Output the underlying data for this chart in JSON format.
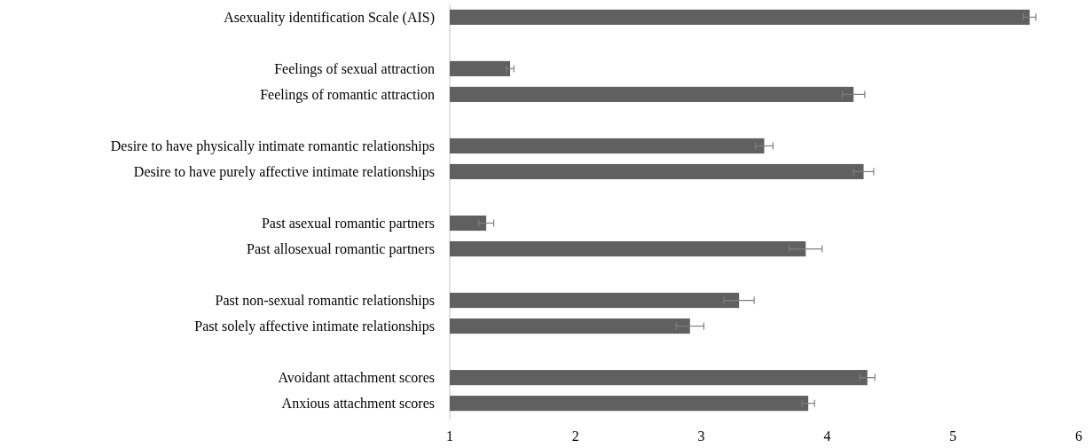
{
  "chart_data": {
    "type": "bar",
    "orientation": "horizontal",
    "categories": [
      "Asexuality identification Scale (AIS)",
      null,
      "Feelings of sexual attraction",
      "Feelings of romantic attraction",
      null,
      "Desire to have physically intimate romantic relationships",
      "Desire to have purely affective intimate relationships",
      null,
      "Past asexual romantic partners",
      "Past allosexual romantic partners",
      null,
      "Past non-sexual romantic relationships",
      "Past solely affective intimate relationships",
      null,
      "Avoidant attachment scores",
      "Anxious attachment scores"
    ],
    "values": [
      5.61,
      null,
      1.48,
      4.21,
      null,
      3.5,
      4.29,
      null,
      1.29,
      3.83,
      null,
      3.3,
      2.91,
      null,
      4.32,
      3.85
    ],
    "errors": [
      0.05,
      null,
      0.03,
      0.09,
      null,
      0.07,
      0.08,
      null,
      0.06,
      0.13,
      null,
      0.12,
      0.11,
      null,
      0.06,
      0.05
    ],
    "color": "#606060",
    "xlim": [
      1,
      6
    ],
    "xticks": [
      1,
      2,
      3,
      4,
      5,
      6
    ],
    "grid": false
  }
}
